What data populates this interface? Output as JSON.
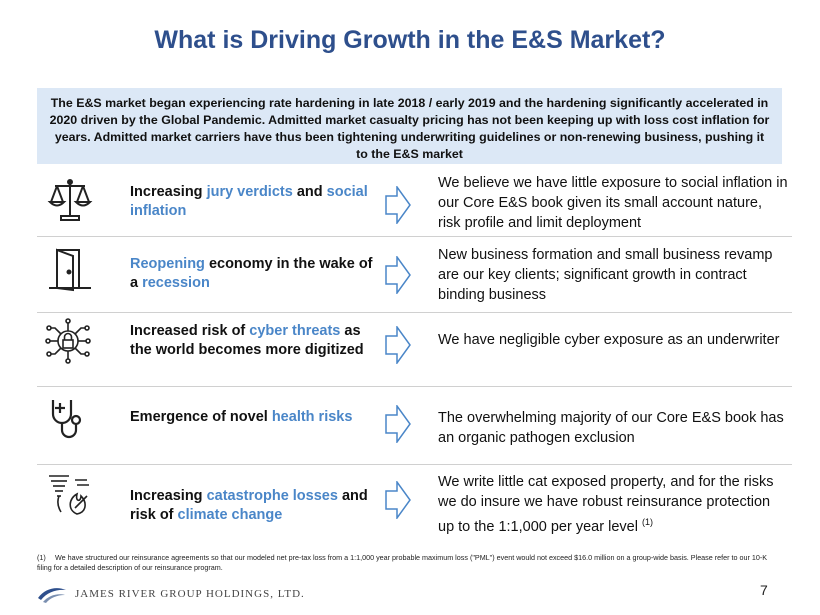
{
  "title": "What is Driving Growth in the E&S Market?",
  "banner": "The E&S market began experiencing rate hardening in late 2018 / early 2019 and the hardening significantly accelerated in 2020 driven by the Global Pandemic. Admitted market casualty pricing has not been keeping up with loss cost inflation for years. Admitted market carriers have thus been tightening underwriting guidelines or non-renewing business, pushing it to the E&S market",
  "colors": {
    "title": "#2e4f8c",
    "highlight": "#4a86c8",
    "banner_bg": "#dce8f6"
  },
  "rows": [
    {
      "icon": "scales-of-justice-icon",
      "driver": {
        "a": "Increasing ",
        "b": "jury verdicts",
        "c": " and ",
        "d": "social inflation",
        "e": ""
      },
      "impact": "We believe we have little exposure to social inflation in our Core E&S book given its small account nature, risk profile and limit deployment"
    },
    {
      "icon": "open-door-icon",
      "driver": {
        "a": "",
        "b": "Reopening",
        "c": " economy in the wake of a ",
        "d": "recession",
        "e": ""
      },
      "impact": "New business formation and small business revamp are our key clients; significant growth in contract binding business"
    },
    {
      "icon": "cyber-lock-network-icon",
      "driver": {
        "a": "Increased risk of ",
        "b": "cyber threats",
        "c": " as the world becomes more digitized",
        "d": "",
        "e": ""
      },
      "impact": "We have negligible cyber exposure as an underwriter"
    },
    {
      "icon": "stethoscope-icon",
      "driver": {
        "a": "Emergence of novel ",
        "b": "health risks",
        "c": "",
        "d": "",
        "e": ""
      },
      "impact": "The overwhelming majority of our Core E&S book has an organic pathogen exclusion"
    },
    {
      "icon": "tornado-wildfire-icon",
      "driver": {
        "a": "Increasing ",
        "b": "catastrophe losses",
        "c": " and risk of ",
        "d": "climate change",
        "e": ""
      },
      "impact": "We write little cat exposed property, and for the risks we do insure we have robust reinsurance protection up to the 1:1,000 per year level ",
      "impact_sup": "(1)"
    }
  ],
  "footnote": {
    "num": "(1)",
    "text": "We have structured our reinsurance agreements so that our modeled net pre-tax loss from a 1:1,000 year probable maximum loss (\"PML\") event would not exceed $16.0 million on a group-wide basis. Please refer to our 10-K filing for a detailed description of our reinsurance program."
  },
  "logo_text": "JAMES RIVER GROUP HOLDINGS, LTD.",
  "page_number": "7"
}
